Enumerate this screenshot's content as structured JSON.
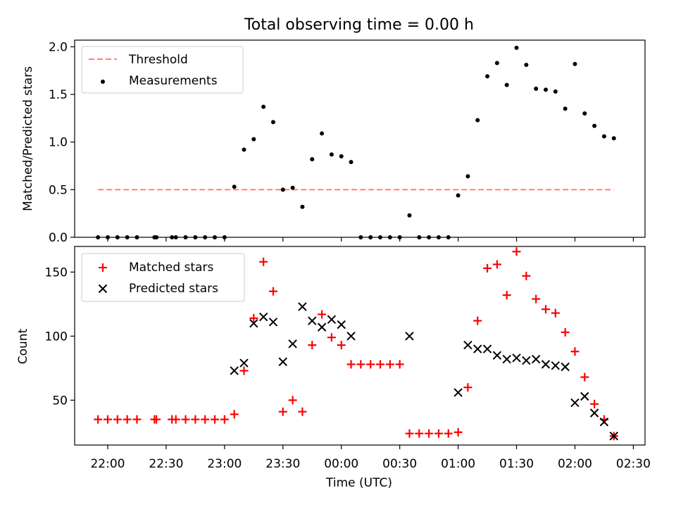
{
  "chart_data": [
    {
      "type": "scatter",
      "title": "Total observing time = 0.00 h",
      "xlabel": "",
      "ylabel": "Matched/Predicted stars",
      "ylim": [
        0,
        2.07
      ],
      "xlim": [
        "21:43",
        "02:36"
      ],
      "yticks": [
        "0.0",
        "0.5",
        "1.0",
        "1.5",
        "2.0"
      ],
      "yticks_values": [
        0,
        0.5,
        1.0,
        1.5,
        2.0
      ],
      "legend_position": "top-left",
      "grid": false,
      "threshold": {
        "name": "Threshold",
        "value": 0.5,
        "x_start": "21:55",
        "x_end": "02:20",
        "color": "#ff7f7f",
        "style": "dashed"
      },
      "series": [
        {
          "name": "Measurements",
          "color": "#000000",
          "marker": "dot",
          "x": [
            "21:55",
            "22:00",
            "22:05",
            "22:10",
            "22:15",
            "22:24",
            "22:25",
            "22:33",
            "22:35",
            "22:40",
            "22:45",
            "22:50",
            "22:55",
            "23:00",
            "23:05",
            "23:10",
            "23:15",
            "23:20",
            "23:25",
            "23:30",
            "23:35",
            "23:40",
            "23:45",
            "23:50",
            "23:55",
            "00:00",
            "00:05",
            "00:10",
            "00:15",
            "00:20",
            "00:25",
            "00:30",
            "00:35",
            "00:40",
            "00:45",
            "00:50",
            "00:55",
            "01:00",
            "01:05",
            "01:10",
            "01:15",
            "01:20",
            "01:25",
            "01:30",
            "01:35",
            "01:40",
            "01:45",
            "01:50",
            "01:55",
            "02:00",
            "02:05",
            "02:10",
            "02:15",
            "02:20"
          ],
          "y": [
            0,
            0,
            0,
            0,
            0,
            0,
            0,
            0,
            0,
            0,
            0,
            0,
            0,
            0,
            0.53,
            0.92,
            1.03,
            1.37,
            1.21,
            0.5,
            0.52,
            0.32,
            0.82,
            1.09,
            0.87,
            0.85,
            0.79,
            0,
            0,
            0,
            0,
            0,
            0.23,
            0,
            0,
            0,
            0,
            0.44,
            0.64,
            1.23,
            1.69,
            1.83,
            1.6,
            1.99,
            1.81,
            1.56,
            1.55,
            1.53,
            1.35,
            1.82,
            1.3,
            1.17,
            1.06,
            1.04
          ]
        }
      ]
    },
    {
      "type": "scatter",
      "title": "",
      "xlabel": "Time (UTC)",
      "ylabel": "Count",
      "ylim": [
        15,
        170
      ],
      "xlim": [
        "21:43",
        "02:36"
      ],
      "yticks": [
        "50",
        "100",
        "150"
      ],
      "yticks_values": [
        50,
        100,
        150
      ],
      "xticks": [
        "22:00",
        "22:30",
        "23:00",
        "23:30",
        "00:00",
        "00:30",
        "01:00",
        "01:30",
        "02:00",
        "02:30"
      ],
      "legend_position": "top-left",
      "grid": false,
      "series": [
        {
          "name": "Matched stars",
          "color": "#ff0000",
          "marker": "plus",
          "x": [
            "21:55",
            "22:00",
            "22:05",
            "22:10",
            "22:15",
            "22:24",
            "22:25",
            "22:33",
            "22:35",
            "22:40",
            "22:45",
            "22:50",
            "22:55",
            "23:00",
            "23:05",
            "23:10",
            "23:15",
            "23:20",
            "23:25",
            "23:30",
            "23:35",
            "23:40",
            "23:45",
            "23:50",
            "23:55",
            "00:00",
            "00:05",
            "00:10",
            "00:15",
            "00:20",
            "00:25",
            "00:30",
            "00:35",
            "00:40",
            "00:45",
            "00:50",
            "00:55",
            "01:00",
            "01:05",
            "01:10",
            "01:15",
            "01:20",
            "01:25",
            "01:30",
            "01:35",
            "01:40",
            "01:45",
            "01:50",
            "01:55",
            "02:00",
            "02:05",
            "02:10",
            "02:15",
            "02:20"
          ],
          "y": [
            35,
            35,
            35,
            35,
            35,
            35,
            35,
            35,
            35,
            35,
            35,
            35,
            35,
            35,
            39,
            73,
            114,
            158,
            135,
            41,
            50,
            41,
            93,
            117,
            99,
            93,
            78,
            78,
            78,
            78,
            78,
            78,
            24,
            24,
            24,
            24,
            24,
            25,
            60,
            112,
            153,
            156,
            132,
            166,
            147,
            129,
            121,
            118,
            103,
            88,
            68,
            47,
            35,
            22
          ]
        },
        {
          "name": "Predicted stars",
          "color": "#000000",
          "marker": "x",
          "x": [
            "23:05",
            "23:10",
            "23:15",
            "23:20",
            "23:25",
            "23:30",
            "23:35",
            "23:40",
            "23:45",
            "23:50",
            "23:55",
            "00:00",
            "00:05",
            "00:35",
            "01:00",
            "01:05",
            "01:10",
            "01:15",
            "01:20",
            "01:25",
            "01:30",
            "01:35",
            "01:40",
            "01:45",
            "01:50",
            "01:55",
            "02:00",
            "02:05",
            "02:10",
            "02:15",
            "02:20"
          ],
          "y": [
            73,
            79,
            110,
            115,
            111,
            80,
            94,
            123,
            112,
            107,
            113,
            109,
            100,
            100,
            56,
            93,
            90,
            90,
            85,
            82,
            83,
            81,
            82,
            78,
            77,
            76,
            48,
            53,
            40,
            33,
            22
          ]
        }
      ]
    }
  ]
}
